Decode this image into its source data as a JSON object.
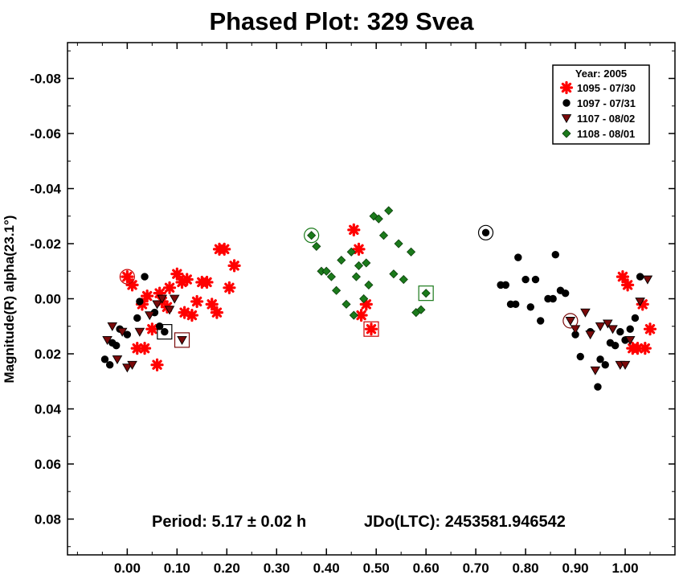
{
  "chart_data": {
    "type": "scatter",
    "title": "Phased Plot: 329 Svea",
    "xlabel": "",
    "ylabel": "Magnitude(R) alpha(23.1°)",
    "xlim": [
      -0.12,
      1.1
    ],
    "ylim": [
      0.093,
      -0.093
    ],
    "y_inverted": true,
    "grid": false,
    "x_ticks": [
      0.0,
      0.1,
      0.2,
      0.3,
      0.4,
      0.5,
      0.6,
      0.7,
      0.8,
      0.9,
      1.0
    ],
    "x_tick_labels": [
      "0.00",
      "0.10",
      "0.20",
      "0.30",
      "0.40",
      "0.50",
      "0.60",
      "0.70",
      "0.80",
      "0.90",
      "1.00"
    ],
    "y_ticks": [
      -0.08,
      -0.06,
      -0.04,
      -0.02,
      0.0,
      0.02,
      0.04,
      0.06,
      0.08
    ],
    "y_tick_labels": [
      "-0.08",
      "-0.06",
      "-0.04",
      "-0.02",
      "0.00",
      "0.02",
      "0.04",
      "0.06",
      "0.08"
    ],
    "annotations": {
      "period": "Period: 5.17 ± 0.02 h",
      "jdo": "JDo(LTC): 2453581.946542"
    },
    "legend": {
      "title": "Year: 2005",
      "placement": "top-right"
    },
    "series": [
      {
        "name": "1095 - 07/30",
        "marker": "asterisk",
        "color": "#ff0000",
        "stroke": "#cc0000",
        "points": [
          [
            0.0,
            -0.008
          ],
          [
            0.01,
            -0.005
          ],
          [
            0.02,
            0.018
          ],
          [
            0.03,
            0.002
          ],
          [
            0.035,
            0.018
          ],
          [
            0.04,
            -0.001
          ],
          [
            0.05,
            0.011
          ],
          [
            0.06,
            0.024
          ],
          [
            0.065,
            -0.002
          ],
          [
            0.07,
            0.001
          ],
          [
            0.08,
            0.003
          ],
          [
            0.085,
            -0.004
          ],
          [
            0.1,
            -0.009
          ],
          [
            0.11,
            -0.006
          ],
          [
            0.115,
            0.005
          ],
          [
            0.12,
            -0.007
          ],
          [
            0.13,
            0.006
          ],
          [
            0.14,
            0.001
          ],
          [
            0.15,
            -0.006
          ],
          [
            0.16,
            -0.006
          ],
          [
            0.17,
            0.002
          ],
          [
            0.18,
            0.005
          ],
          [
            0.185,
            -0.018
          ],
          [
            0.195,
            -0.018
          ],
          [
            0.205,
            -0.004
          ],
          [
            0.215,
            -0.012
          ],
          [
            0.455,
            -0.025
          ],
          [
            0.465,
            -0.018
          ],
          [
            0.47,
            0.006
          ],
          [
            0.48,
            0.002
          ],
          [
            0.49,
            0.011
          ],
          [
            0.995,
            -0.008
          ],
          [
            1.005,
            -0.005
          ],
          [
            1.015,
            0.018
          ],
          [
            1.025,
            0.018
          ],
          [
            1.035,
            0.002
          ],
          [
            1.04,
            0.018
          ],
          [
            1.05,
            0.011
          ]
        ]
      },
      {
        "name": "1097 - 07/31",
        "marker": "circle",
        "color": "#000000",
        "stroke": "#000000",
        "points": [
          [
            -0.045,
            0.022
          ],
          [
            -0.035,
            0.024
          ],
          [
            -0.03,
            0.016
          ],
          [
            -0.022,
            0.017
          ],
          [
            -0.015,
            0.011
          ],
          [
            0.0,
            0.013
          ],
          [
            0.02,
            0.007
          ],
          [
            0.025,
            0.001
          ],
          [
            0.035,
            -0.008
          ],
          [
            0.055,
            0.005
          ],
          [
            0.065,
            0.01
          ],
          [
            0.075,
            0.012
          ],
          [
            0.72,
            -0.024
          ],
          [
            0.75,
            -0.005
          ],
          [
            0.76,
            -0.005
          ],
          [
            0.77,
            0.002
          ],
          [
            0.78,
            0.002
          ],
          [
            0.785,
            -0.015
          ],
          [
            0.8,
            -0.007
          ],
          [
            0.81,
            0.003
          ],
          [
            0.82,
            -0.007
          ],
          [
            0.83,
            0.008
          ],
          [
            0.845,
            0.0
          ],
          [
            0.855,
            0.0
          ],
          [
            0.86,
            -0.016
          ],
          [
            0.87,
            -0.003
          ],
          [
            0.88,
            -0.002
          ],
          [
            0.9,
            0.013
          ],
          [
            0.91,
            0.021
          ],
          [
            0.93,
            0.012
          ],
          [
            0.945,
            0.032
          ],
          [
            0.95,
            0.022
          ],
          [
            0.96,
            0.024
          ],
          [
            0.97,
            0.016
          ],
          [
            0.98,
            0.017
          ],
          [
            0.99,
            0.012
          ],
          [
            1.0,
            0.015
          ],
          [
            1.01,
            0.011
          ],
          [
            1.02,
            0.007
          ],
          [
            1.03,
            -0.008
          ]
        ]
      },
      {
        "name": "1107 - 08/02",
        "marker": "triangle-down",
        "color": "#7a0a0a",
        "stroke": "#000000",
        "points": [
          [
            -0.04,
            0.015
          ],
          [
            -0.03,
            0.01
          ],
          [
            -0.02,
            0.022
          ],
          [
            -0.01,
            0.012
          ],
          [
            0.0,
            0.025
          ],
          [
            0.01,
            0.024
          ],
          [
            0.025,
            0.012
          ],
          [
            0.045,
            0.006
          ],
          [
            0.06,
            0.002
          ],
          [
            0.07,
            0.0
          ],
          [
            0.085,
            0.004
          ],
          [
            0.095,
            0.0
          ],
          [
            0.11,
            0.015
          ],
          [
            0.89,
            0.008
          ],
          [
            0.9,
            0.011
          ],
          [
            0.92,
            0.005
          ],
          [
            0.93,
            0.013
          ],
          [
            0.94,
            0.026
          ],
          [
            0.95,
            0.01
          ],
          [
            0.965,
            0.009
          ],
          [
            0.975,
            0.011
          ],
          [
            0.99,
            0.024
          ],
          [
            1.0,
            0.024
          ],
          [
            1.01,
            0.015
          ],
          [
            1.03,
            0.001
          ],
          [
            1.045,
            -0.007
          ]
        ]
      },
      {
        "name": "1108 - 08/01",
        "marker": "diamond",
        "color": "#1b7a1b",
        "stroke": "#0a3d0a",
        "points": [
          [
            0.37,
            -0.023
          ],
          [
            0.38,
            -0.019
          ],
          [
            0.39,
            -0.01
          ],
          [
            0.4,
            -0.01
          ],
          [
            0.41,
            -0.008
          ],
          [
            0.42,
            -0.003
          ],
          [
            0.43,
            -0.014
          ],
          [
            0.44,
            0.002
          ],
          [
            0.45,
            -0.017
          ],
          [
            0.455,
            0.006
          ],
          [
            0.46,
            -0.008
          ],
          [
            0.465,
            -0.012
          ],
          [
            0.475,
            0.0
          ],
          [
            0.48,
            -0.013
          ],
          [
            0.485,
            -0.005
          ],
          [
            0.495,
            -0.03
          ],
          [
            0.505,
            -0.029
          ],
          [
            0.515,
            -0.023
          ],
          [
            0.525,
            -0.032
          ],
          [
            0.535,
            -0.009
          ],
          [
            0.545,
            -0.02
          ],
          [
            0.555,
            -0.007
          ],
          [
            0.57,
            -0.017
          ],
          [
            0.58,
            0.005
          ],
          [
            0.59,
            0.004
          ],
          [
            0.6,
            -0.002
          ]
        ]
      }
    ],
    "highlighted_points": [
      {
        "series": "1095 - 07/30",
        "shape": "circle",
        "x": 0.0,
        "y": -0.008
      },
      {
        "series": "1097 - 07/31",
        "shape": "square",
        "x": 0.075,
        "y": 0.012
      },
      {
        "series": "1107 - 08/02",
        "shape": "square",
        "x": 0.11,
        "y": 0.015
      },
      {
        "series": "1108 - 08/01",
        "shape": "circle",
        "x": 0.37,
        "y": -0.023
      },
      {
        "series": "1095 - 07/30",
        "shape": "square",
        "x": 0.49,
        "y": 0.011
      },
      {
        "series": "1108 - 08/01",
        "shape": "square",
        "x": 0.6,
        "y": -0.002
      },
      {
        "series": "1097 - 07/31",
        "shape": "circle",
        "x": 0.72,
        "y": -0.024
      },
      {
        "series": "1107 - 08/02",
        "shape": "circle",
        "x": 0.89,
        "y": 0.008
      }
    ]
  }
}
